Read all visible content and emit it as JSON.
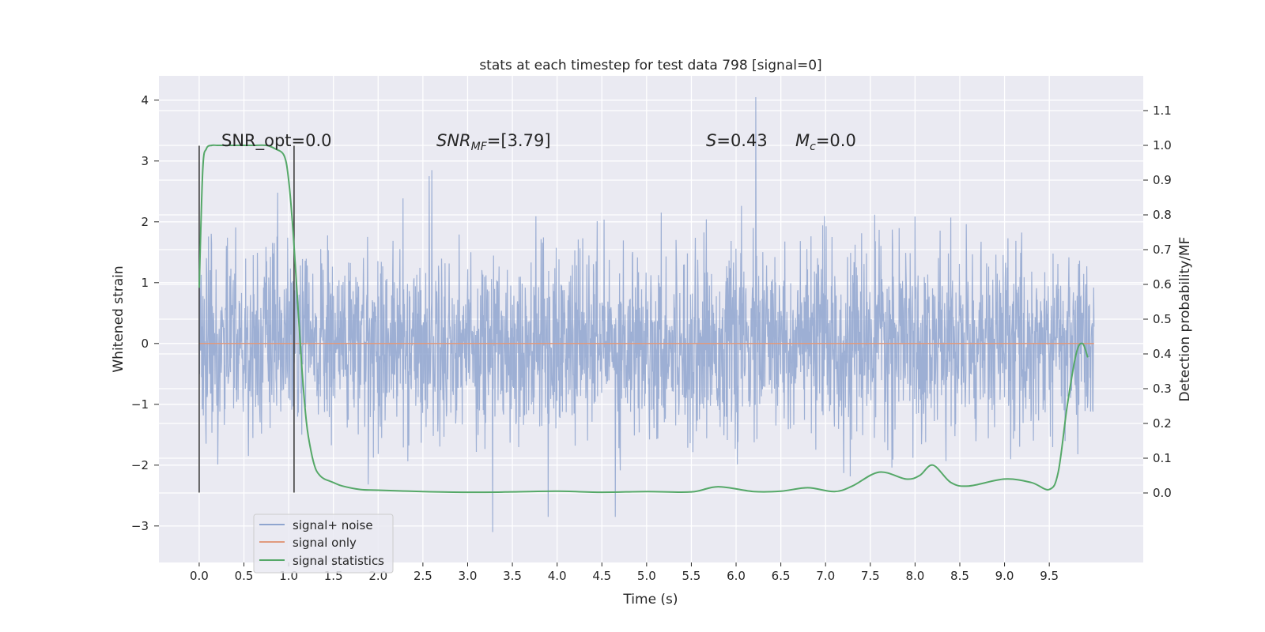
{
  "chart_data": {
    "type": "line",
    "title": "stats at each timestep for test data 798 [signal=0]",
    "xlabel": "Time (s)",
    "ylabel_left": "Whitened strain",
    "ylabel_right": "Detection probability/MF",
    "xlim": [
      -0.45,
      10.55
    ],
    "ylim_left": [
      -3.6,
      4.4
    ],
    "ylim_right": [
      -0.2,
      1.2
    ],
    "xticks": [
      0.0,
      0.5,
      1.0,
      1.5,
      2.0,
      2.5,
      3.0,
      3.5,
      4.0,
      4.5,
      5.0,
      5.5,
      6.0,
      6.5,
      7.0,
      7.5,
      8.0,
      8.5,
      9.0,
      9.5
    ],
    "xtick_labels": [
      "0.0",
      "0.5",
      "1.0",
      "1.5",
      "2.0",
      "2.5",
      "3.0",
      "3.5",
      "4.0",
      "4.5",
      "5.0",
      "5.5",
      "6.0",
      "6.5",
      "7.0",
      "7.5",
      "8.0",
      "8.5",
      "9.0",
      "9.5"
    ],
    "yticks_left": [
      -3,
      -2,
      -1,
      0,
      1,
      2,
      3,
      4
    ],
    "ytick_labels_left": [
      "−3",
      "−2",
      "−1",
      "0",
      "1",
      "2",
      "3",
      "4"
    ],
    "yticks_right": [
      0.0,
      0.1,
      0.2,
      0.3,
      0.4,
      0.5,
      0.6,
      0.7,
      0.8,
      0.9,
      1.0,
      1.1
    ],
    "ytick_labels_right": [
      "0.0",
      "0.1",
      "0.2",
      "0.3",
      "0.4",
      "0.5",
      "0.6",
      "0.7",
      "0.8",
      "0.9",
      "1.0",
      "1.1"
    ],
    "grid": true,
    "legend_position": "lower-left",
    "series": [
      {
        "name": "signal+ noise",
        "axis": "left",
        "color": "#8fa5cf",
        "style": "dense noise trace",
        "x_range": [
          0.0,
          10.0
        ],
        "noise_std": 0.75,
        "notable_peaks": [
          {
            "x": 6.22,
            "y": 4.05
          },
          {
            "x": 2.6,
            "y": 2.85
          },
          {
            "x": 3.28,
            "y": -3.1
          },
          {
            "x": 4.65,
            "y": -2.85
          },
          {
            "x": 3.9,
            "y": -2.85
          }
        ]
      },
      {
        "name": "signal only",
        "axis": "left",
        "color": "#e09a7e",
        "x": [
          0.0,
          10.0
        ],
        "y": [
          0.0,
          0.0
        ]
      },
      {
        "name": "signal statistics",
        "axis": "right",
        "color": "#55a868",
        "x": [
          0.0,
          0.04,
          0.08,
          0.14,
          0.2,
          0.3,
          0.45,
          0.6,
          0.75,
          0.85,
          0.95,
          1.0,
          1.05,
          1.1,
          1.15,
          1.2,
          1.25,
          1.3,
          1.35,
          1.4,
          1.45,
          1.5,
          1.6,
          1.8,
          2.0,
          2.5,
          3.0,
          3.5,
          4.0,
          4.5,
          5.0,
          5.5,
          5.8,
          6.2,
          6.5,
          6.8,
          7.1,
          7.3,
          7.6,
          7.9,
          8.05,
          8.2,
          8.4,
          8.6,
          9.0,
          9.3,
          9.5,
          9.6,
          9.7,
          9.8,
          9.87,
          9.93
        ],
        "y": [
          0.59,
          0.93,
          0.99,
          1.0,
          1.0,
          1.0,
          1.0,
          1.0,
          1.0,
          0.99,
          0.97,
          0.9,
          0.75,
          0.55,
          0.35,
          0.2,
          0.12,
          0.07,
          0.05,
          0.04,
          0.035,
          0.03,
          0.02,
          0.01,
          0.008,
          0.004,
          0.002,
          0.003,
          0.005,
          0.002,
          0.004,
          0.003,
          0.018,
          0.004,
          0.005,
          0.015,
          0.004,
          0.02,
          0.06,
          0.04,
          0.05,
          0.08,
          0.03,
          0.02,
          0.04,
          0.03,
          0.01,
          0.06,
          0.25,
          0.4,
          0.43,
          0.39
        ]
      }
    ],
    "vertical_markers": [
      {
        "x": 0.0,
        "y_range": [
          -2.45,
          3.25
        ],
        "color": "#404040"
      },
      {
        "x": 1.06,
        "y_range": [
          -2.45,
          3.25
        ],
        "color": "#404040"
      }
    ],
    "annotations": {
      "snr_opt": "SNR_opt=0.0",
      "snr_mf_symbol": "SNR",
      "snr_mf_sub": "MF",
      "snr_mf_value": "=[3.79]",
      "s_symbol": "S",
      "s_value": "=0.43",
      "mc_symbol": "M",
      "mc_sub": "c",
      "mc_value": "=0.0"
    }
  }
}
